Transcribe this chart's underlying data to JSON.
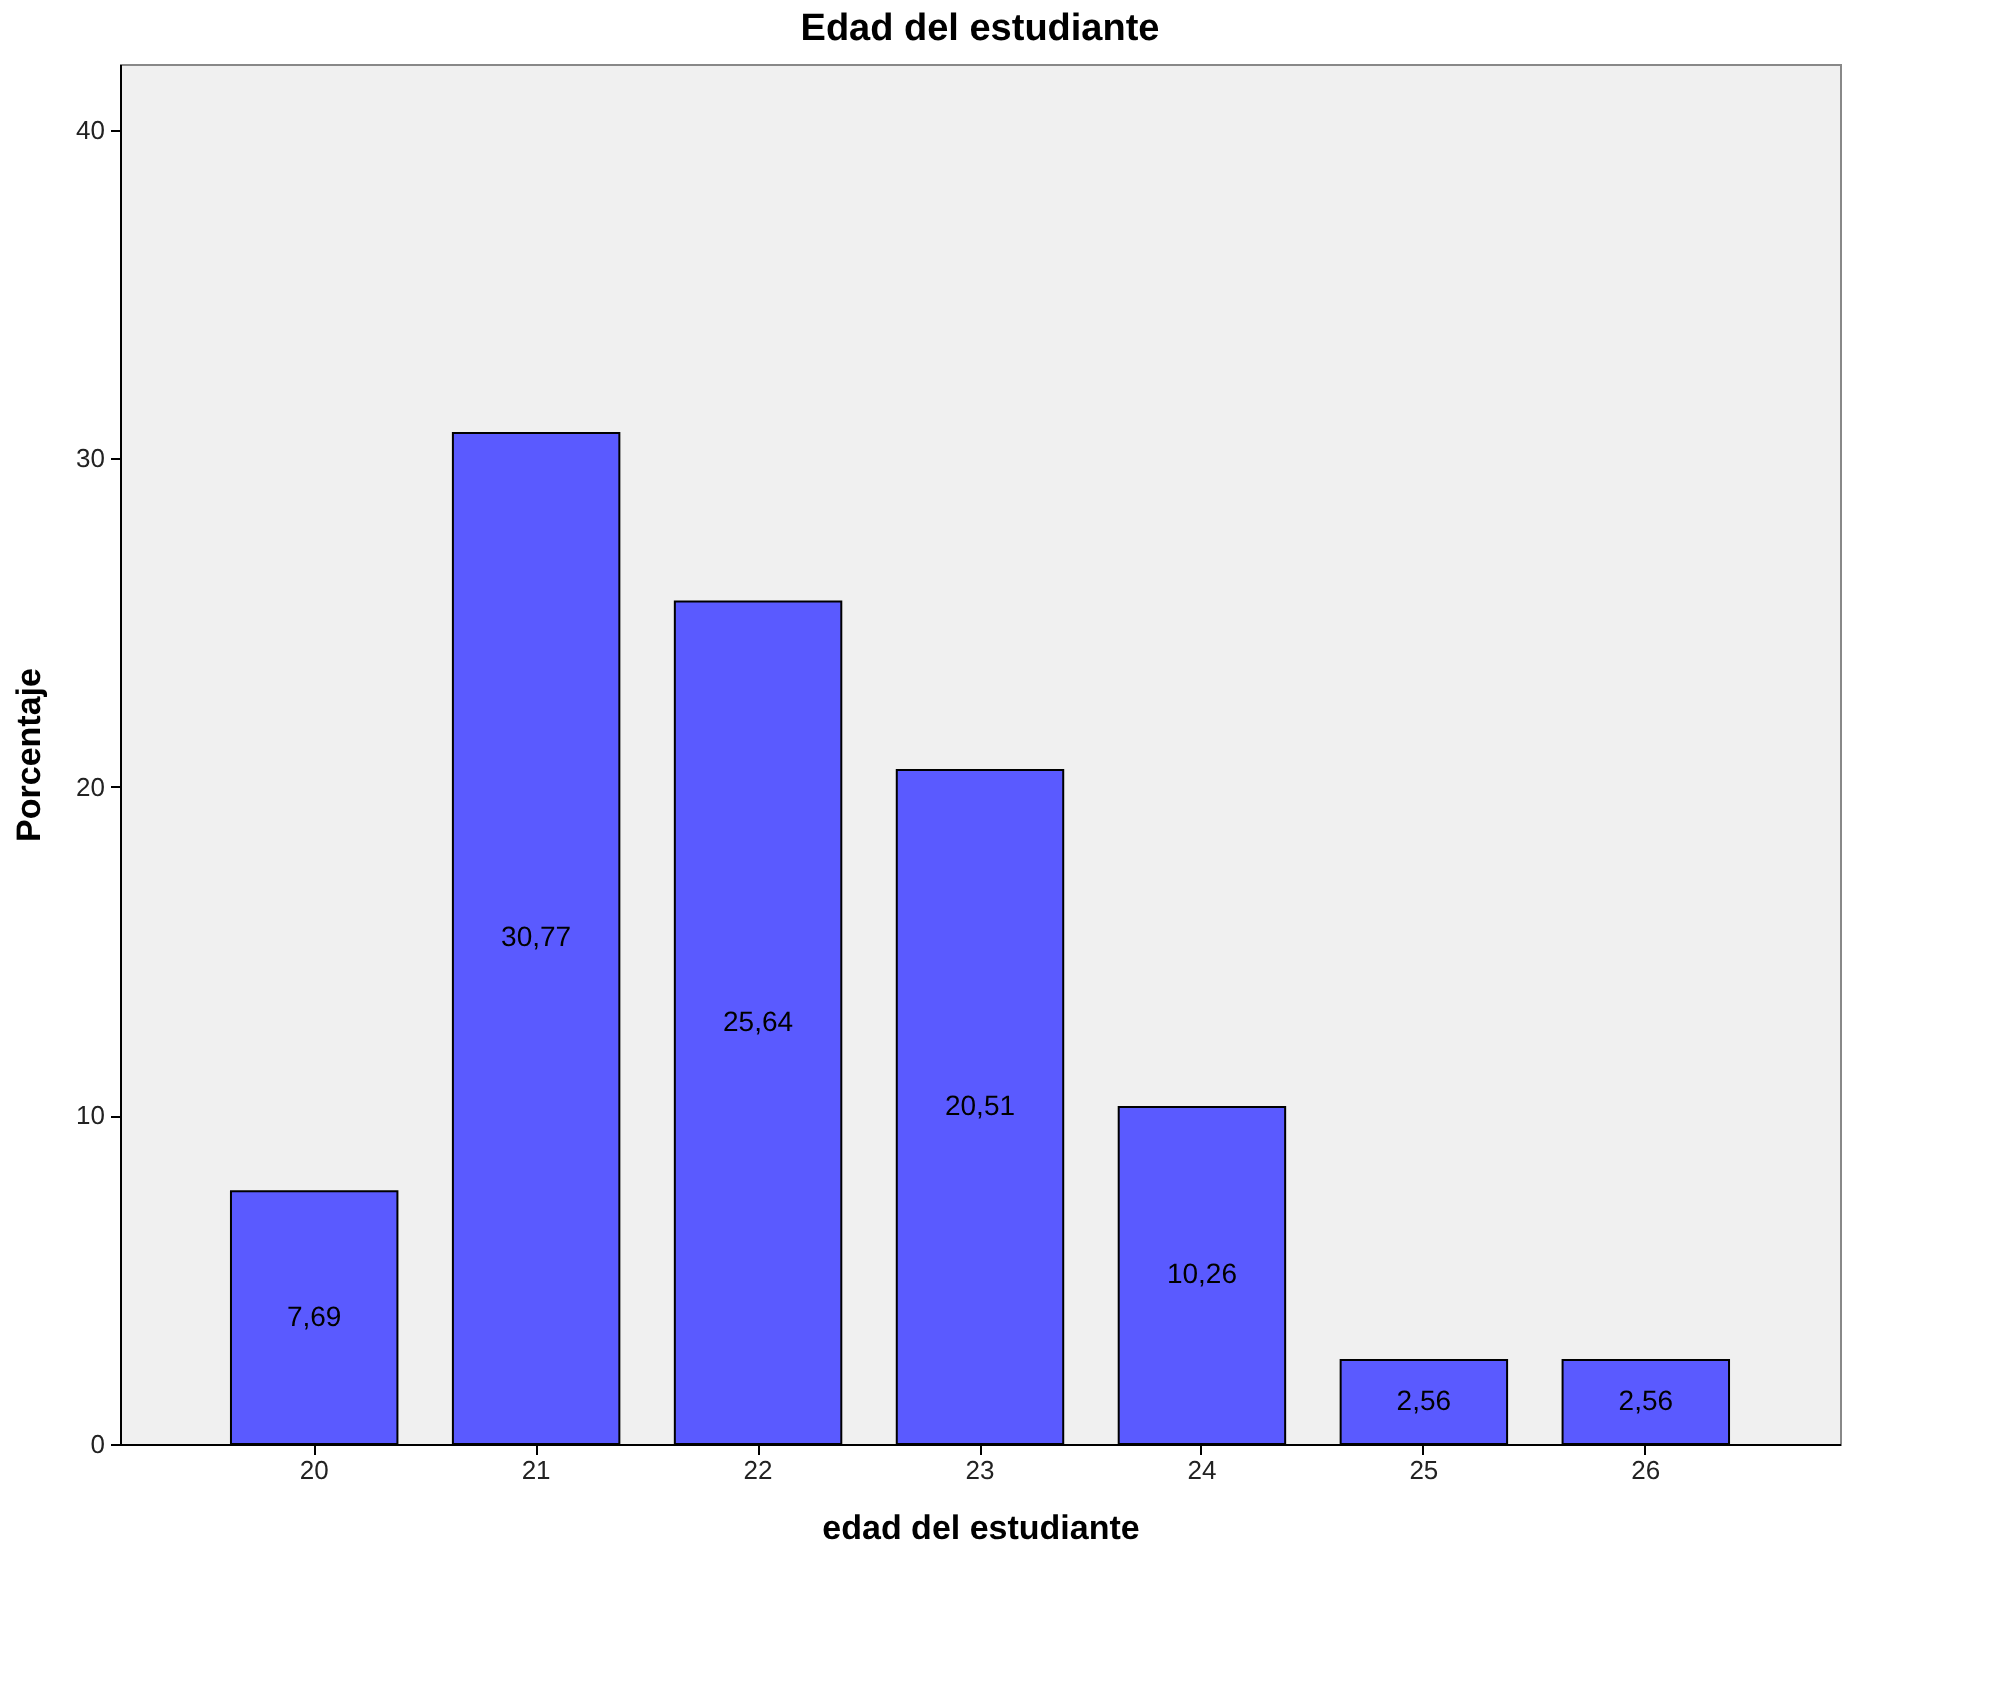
{
  "chart_data": {
    "type": "bar",
    "title": "Edad del estudiante",
    "xlabel": "edad del estudiante",
    "ylabel": "Porcentaje",
    "categories": [
      "20",
      "21",
      "22",
      "23",
      "24",
      "25",
      "26"
    ],
    "values": [
      7.69,
      30.77,
      25.64,
      20.51,
      10.26,
      2.56,
      2.56
    ],
    "value_labels": [
      "7,69",
      "30,77",
      "25,64",
      "20,51",
      "10,26",
      "2,56",
      "2,56"
    ],
    "color": "#5a5aff",
    "ylim": [
      0,
      42
    ],
    "yticks": [
      0,
      10,
      20,
      30,
      40
    ],
    "grid": false
  }
}
